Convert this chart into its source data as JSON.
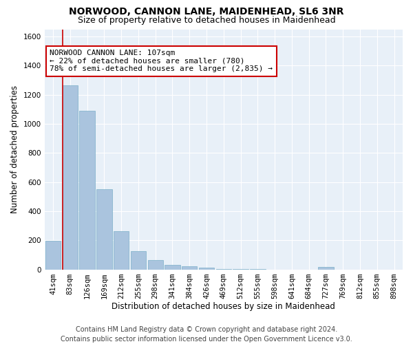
{
  "title": "NORWOOD, CANNON LANE, MAIDENHEAD, SL6 3NR",
  "subtitle": "Size of property relative to detached houses in Maidenhead",
  "xlabel": "Distribution of detached houses by size in Maidenhead",
  "ylabel": "Number of detached properties",
  "footer_line1": "Contains HM Land Registry data © Crown copyright and database right 2024.",
  "footer_line2": "Contains public sector information licensed under the Open Government Licence v3.0.",
  "bar_labels": [
    "41sqm",
    "83sqm",
    "126sqm",
    "169sqm",
    "212sqm",
    "255sqm",
    "298sqm",
    "341sqm",
    "384sqm",
    "426sqm",
    "469sqm",
    "512sqm",
    "555sqm",
    "598sqm",
    "641sqm",
    "684sqm",
    "727sqm",
    "769sqm",
    "812sqm",
    "855sqm",
    "898sqm"
  ],
  "bar_values": [
    195,
    1265,
    1090,
    550,
    265,
    125,
    62,
    32,
    22,
    10,
    5,
    2,
    1,
    0,
    0,
    0,
    18,
    0,
    0,
    0,
    0
  ],
  "bar_color": "#aac4de",
  "bar_edge_color": "#7aafc8",
  "bg_color": "#e8f0f8",
  "grid_color": "#ffffff",
  "vline_color": "#cc0000",
  "annotation_text": "NORWOOD CANNON LANE: 107sqm\n← 22% of detached houses are smaller (780)\n78% of semi-detached houses are larger (2,835) →",
  "ylim": [
    0,
    1650
  ],
  "yticks": [
    0,
    200,
    400,
    600,
    800,
    1000,
    1200,
    1400,
    1600
  ],
  "title_fontsize": 10,
  "subtitle_fontsize": 9,
  "axis_label_fontsize": 8.5,
  "tick_fontsize": 7.5,
  "annotation_fontsize": 8,
  "footer_fontsize": 7
}
